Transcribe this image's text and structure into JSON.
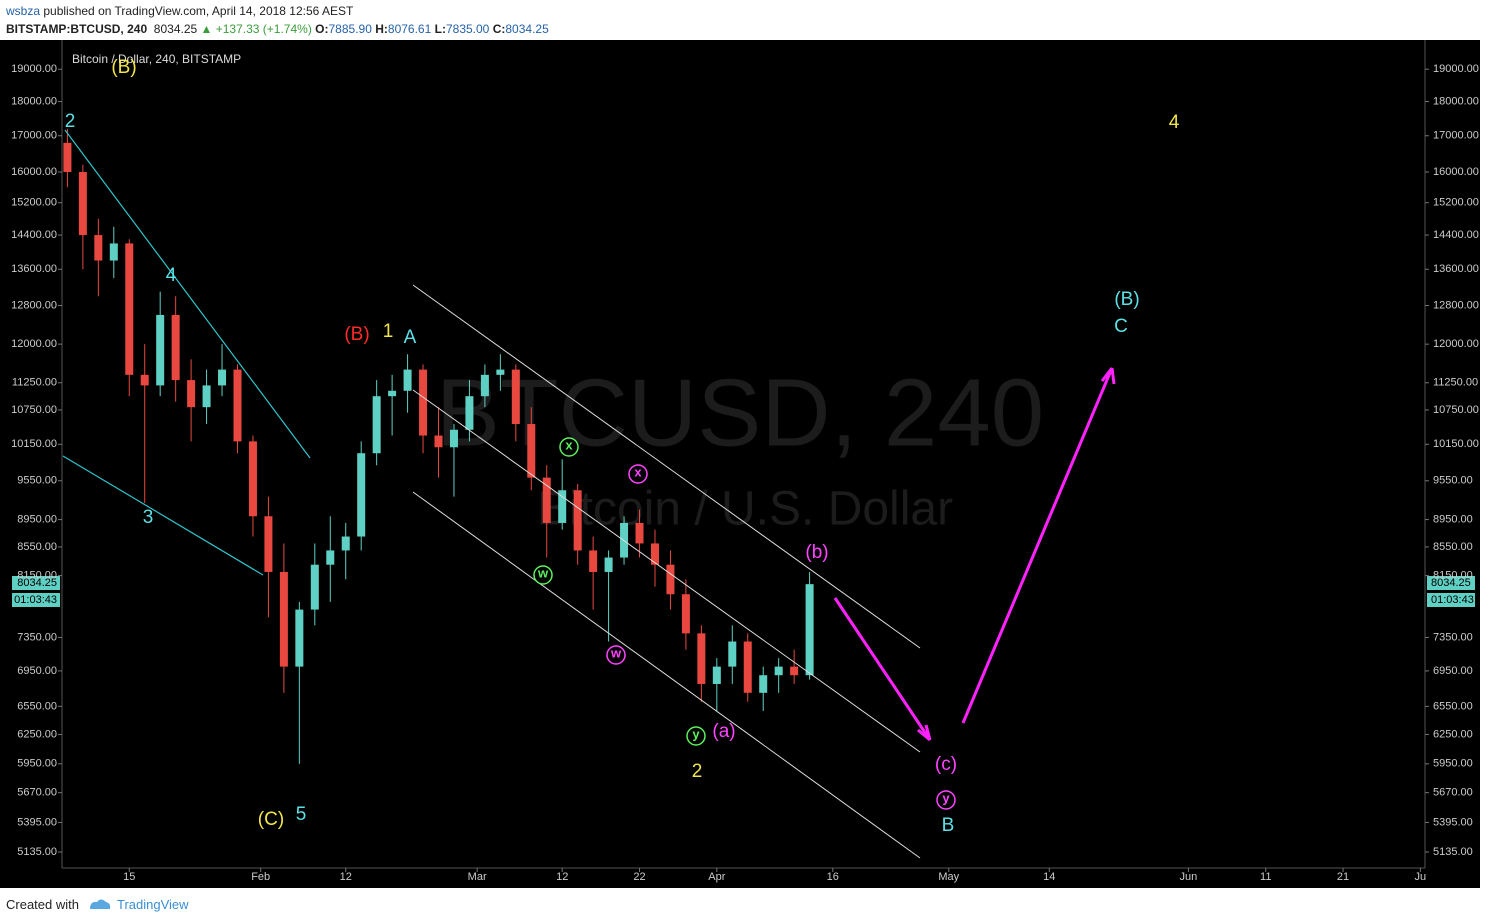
{
  "header": {
    "author": "wsbza",
    "published": "published on TradingView.com, April 14, 2018 12:56 AEST",
    "symbol": "BITSTAMP:BTCUSD, 240",
    "last": "8034.25",
    "change": "▲ +137.33 (+1.74%)",
    "o_label": "O:",
    "o": "7885.90",
    "h_label": "H:",
    "h": "8076.61",
    "l_label": "L:",
    "l": "7835.00",
    "c_label": "C:",
    "c": "8034.25"
  },
  "footer": {
    "created": "Created with",
    "brand": "TradingView"
  },
  "chart_data": {
    "type": "candlestick",
    "legend": "Bitcoin / Dollar, 240, BITSTAMP",
    "watermark": "BTCUSD, 240",
    "watermark_sub": "Bitcoin / U.S. Dollar",
    "price_label": "8034.25",
    "countdown_label": "01:03:43",
    "log_scale": true,
    "grid": false,
    "up_color": "#5fd1c4",
    "down_color": "#e8483f",
    "x": [
      7,
      9,
      11,
      13,
      15,
      17,
      19,
      21,
      23,
      25,
      27,
      29,
      31,
      33,
      35,
      37,
      39,
      41,
      43,
      45,
      47,
      49,
      51,
      53,
      55,
      57,
      59,
      61,
      63,
      65,
      67,
      69,
      71,
      73,
      75,
      77,
      79,
      81,
      83,
      85,
      87,
      89,
      91,
      93,
      95,
      97,
      99,
      101,
      103
    ],
    "ohlc": [
      [
        16800,
        17200,
        15600,
        16000
      ],
      [
        16000,
        16200,
        13600,
        14400
      ],
      [
        14400,
        14800,
        13000,
        13800
      ],
      [
        13800,
        14600,
        13400,
        14200
      ],
      [
        14200,
        14300,
        11000,
        11400
      ],
      [
        11400,
        12000,
        9200,
        11200
      ],
      [
        11200,
        13100,
        11000,
        12600
      ],
      [
        12600,
        13000,
        10900,
        11300
      ],
      [
        11300,
        11700,
        10200,
        10800
      ],
      [
        10800,
        11500,
        10500,
        11200
      ],
      [
        11200,
        12000,
        11000,
        11500
      ],
      [
        11500,
        11600,
        10000,
        10200
      ],
      [
        10200,
        10300,
        8700,
        9000
      ],
      [
        9000,
        9300,
        7600,
        8200
      ],
      [
        8200,
        8600,
        6700,
        7000
      ],
      [
        7000,
        7800,
        5950,
        7700
      ],
      [
        7700,
        8600,
        7500,
        8300
      ],
      [
        8300,
        9000,
        7800,
        8500
      ],
      [
        8500,
        8900,
        8100,
        8700
      ],
      [
        8700,
        10200,
        8500,
        10000
      ],
      [
        10000,
        11300,
        9800,
        11000
      ],
      [
        11000,
        11400,
        10300,
        11100
      ],
      [
        11100,
        11800,
        10700,
        11500
      ],
      [
        11500,
        11600,
        10000,
        10300
      ],
      [
        10300,
        10800,
        9600,
        10100
      ],
      [
        10100,
        10500,
        9300,
        10400
      ],
      [
        10400,
        11300,
        10200,
        11000
      ],
      [
        11000,
        11600,
        10800,
        11400
      ],
      [
        11400,
        11800,
        11100,
        11500
      ],
      [
        11500,
        11600,
        10200,
        10500
      ],
      [
        10500,
        10800,
        9400,
        9600
      ],
      [
        9600,
        9800,
        8400,
        8900
      ],
      [
        8900,
        9900,
        8800,
        9400
      ],
      [
        9400,
        9500,
        8300,
        8500
      ],
      [
        8500,
        8700,
        7700,
        8200
      ],
      [
        8200,
        8500,
        7300,
        8400
      ],
      [
        8400,
        9000,
        8300,
        8900
      ],
      [
        8900,
        9100,
        8400,
        8600
      ],
      [
        8600,
        8800,
        8000,
        8300
      ],
      [
        8300,
        8500,
        7700,
        7900
      ],
      [
        7900,
        8100,
        7200,
        7400
      ],
      [
        7400,
        7500,
        6600,
        6800
      ],
      [
        6800,
        7100,
        6500,
        7000
      ],
      [
        7000,
        7500,
        6800,
        7300
      ],
      [
        7300,
        7400,
        6600,
        6700
      ],
      [
        6700,
        7000,
        6500,
        6900
      ],
      [
        6900,
        7100,
        6700,
        7000
      ],
      [
        7000,
        7200,
        6800,
        6900
      ],
      [
        6900,
        8200,
        6850,
        8034.25
      ]
    ],
    "xlim": [
      6.3,
      182.6
    ],
    "xticks": [
      {
        "value": 15,
        "label": "15"
      },
      {
        "value": 32,
        "label": "Feb"
      },
      {
        "value": 43,
        "label": "12"
      },
      {
        "value": 60,
        "label": "Mar"
      },
      {
        "value": 71,
        "label": "12"
      },
      {
        "value": 81,
        "label": "22"
      },
      {
        "value": 91,
        "label": "Apr"
      },
      {
        "value": 106,
        "label": "16"
      },
      {
        "value": 121,
        "label": "May"
      },
      {
        "value": 134,
        "label": "14"
      },
      {
        "value": 152,
        "label": "Jun"
      },
      {
        "value": 162,
        "label": "11"
      },
      {
        "value": 172,
        "label": "21"
      },
      {
        "value": 182,
        "label": "Ju"
      }
    ],
    "ylim": [
      5016,
      19620
    ],
    "yticks": [
      {
        "value": 19000,
        "label": "19000.00"
      },
      {
        "value": 18000,
        "label": "18000.00"
      },
      {
        "value": 17000,
        "label": "17000.00"
      },
      {
        "value": 16000,
        "label": "16000.00"
      },
      {
        "value": 15200,
        "label": "15200.00"
      },
      {
        "value": 14400,
        "label": "14400.00"
      },
      {
        "value": 13600,
        "label": "13600.00"
      },
      {
        "value": 12800,
        "label": "12800.00"
      },
      {
        "value": 12000,
        "label": "12000.00"
      },
      {
        "value": 11250,
        "label": "11250.00"
      },
      {
        "value": 10750,
        "label": "10750.00"
      },
      {
        "value": 10150,
        "label": "10150.00"
      },
      {
        "value": 9550,
        "label": "9550.00"
      },
      {
        "value": 8950,
        "label": "8950.00"
      },
      {
        "value": 8550,
        "label": "8550.00"
      },
      {
        "value": 8150,
        "label": "8150.00"
      },
      {
        "value": 7350,
        "label": "7350.00"
      },
      {
        "value": 6950,
        "label": "6950.00"
      },
      {
        "value": 6550,
        "label": "6550.00"
      },
      {
        "value": 6250,
        "label": "6250.00"
      },
      {
        "value": 5950,
        "label": "5950.00"
      },
      {
        "value": 5670,
        "label": "5670.00"
      },
      {
        "value": 5395,
        "label": "5395.00"
      },
      {
        "value": 5135,
        "label": "5135.00"
      }
    ],
    "annotations": [
      {
        "text": "(B)",
        "color": "#f2e64a"
      },
      {
        "text": "2",
        "color": "#5ce1e6"
      },
      {
        "text": "4",
        "color": "#5ce1e6"
      },
      {
        "text": "3",
        "color": "#5ce1e6"
      },
      {
        "text": "(C)",
        "color": "#f2e64a"
      },
      {
        "text": "5",
        "color": "#5ce1e6"
      },
      {
        "text": "(B)",
        "color": "#ff2a2a"
      },
      {
        "text": "1",
        "color": "#f2e64a"
      },
      {
        "text": "A",
        "color": "#5ce1e6"
      },
      {
        "text": "x",
        "color": "#5cf05c",
        "circle": true
      },
      {
        "text": "w",
        "color": "#5cf05c",
        "circle": true
      },
      {
        "text": "x",
        "color": "#ff44ff",
        "circle": true
      },
      {
        "text": "w",
        "color": "#ff44ff",
        "circle": true
      },
      {
        "text": "y",
        "color": "#5cf05c",
        "circle": true
      },
      {
        "text": "(a)",
        "color": "#ff44ff"
      },
      {
        "text": "2",
        "color": "#f2e64a"
      },
      {
        "text": "(b)",
        "color": "#ff44ff"
      },
      {
        "text": "(c)",
        "color": "#ff44ff"
      },
      {
        "text": "y",
        "color": "#ff44ff",
        "circle": true
      },
      {
        "text": "B",
        "color": "#5ce1e6"
      },
      {
        "text": "(B)",
        "color": "#5ce1e6"
      },
      {
        "text": "C",
        "color": "#5ce1e6"
      },
      {
        "text": "4",
        "color": "#f2e64a"
      }
    ]
  }
}
